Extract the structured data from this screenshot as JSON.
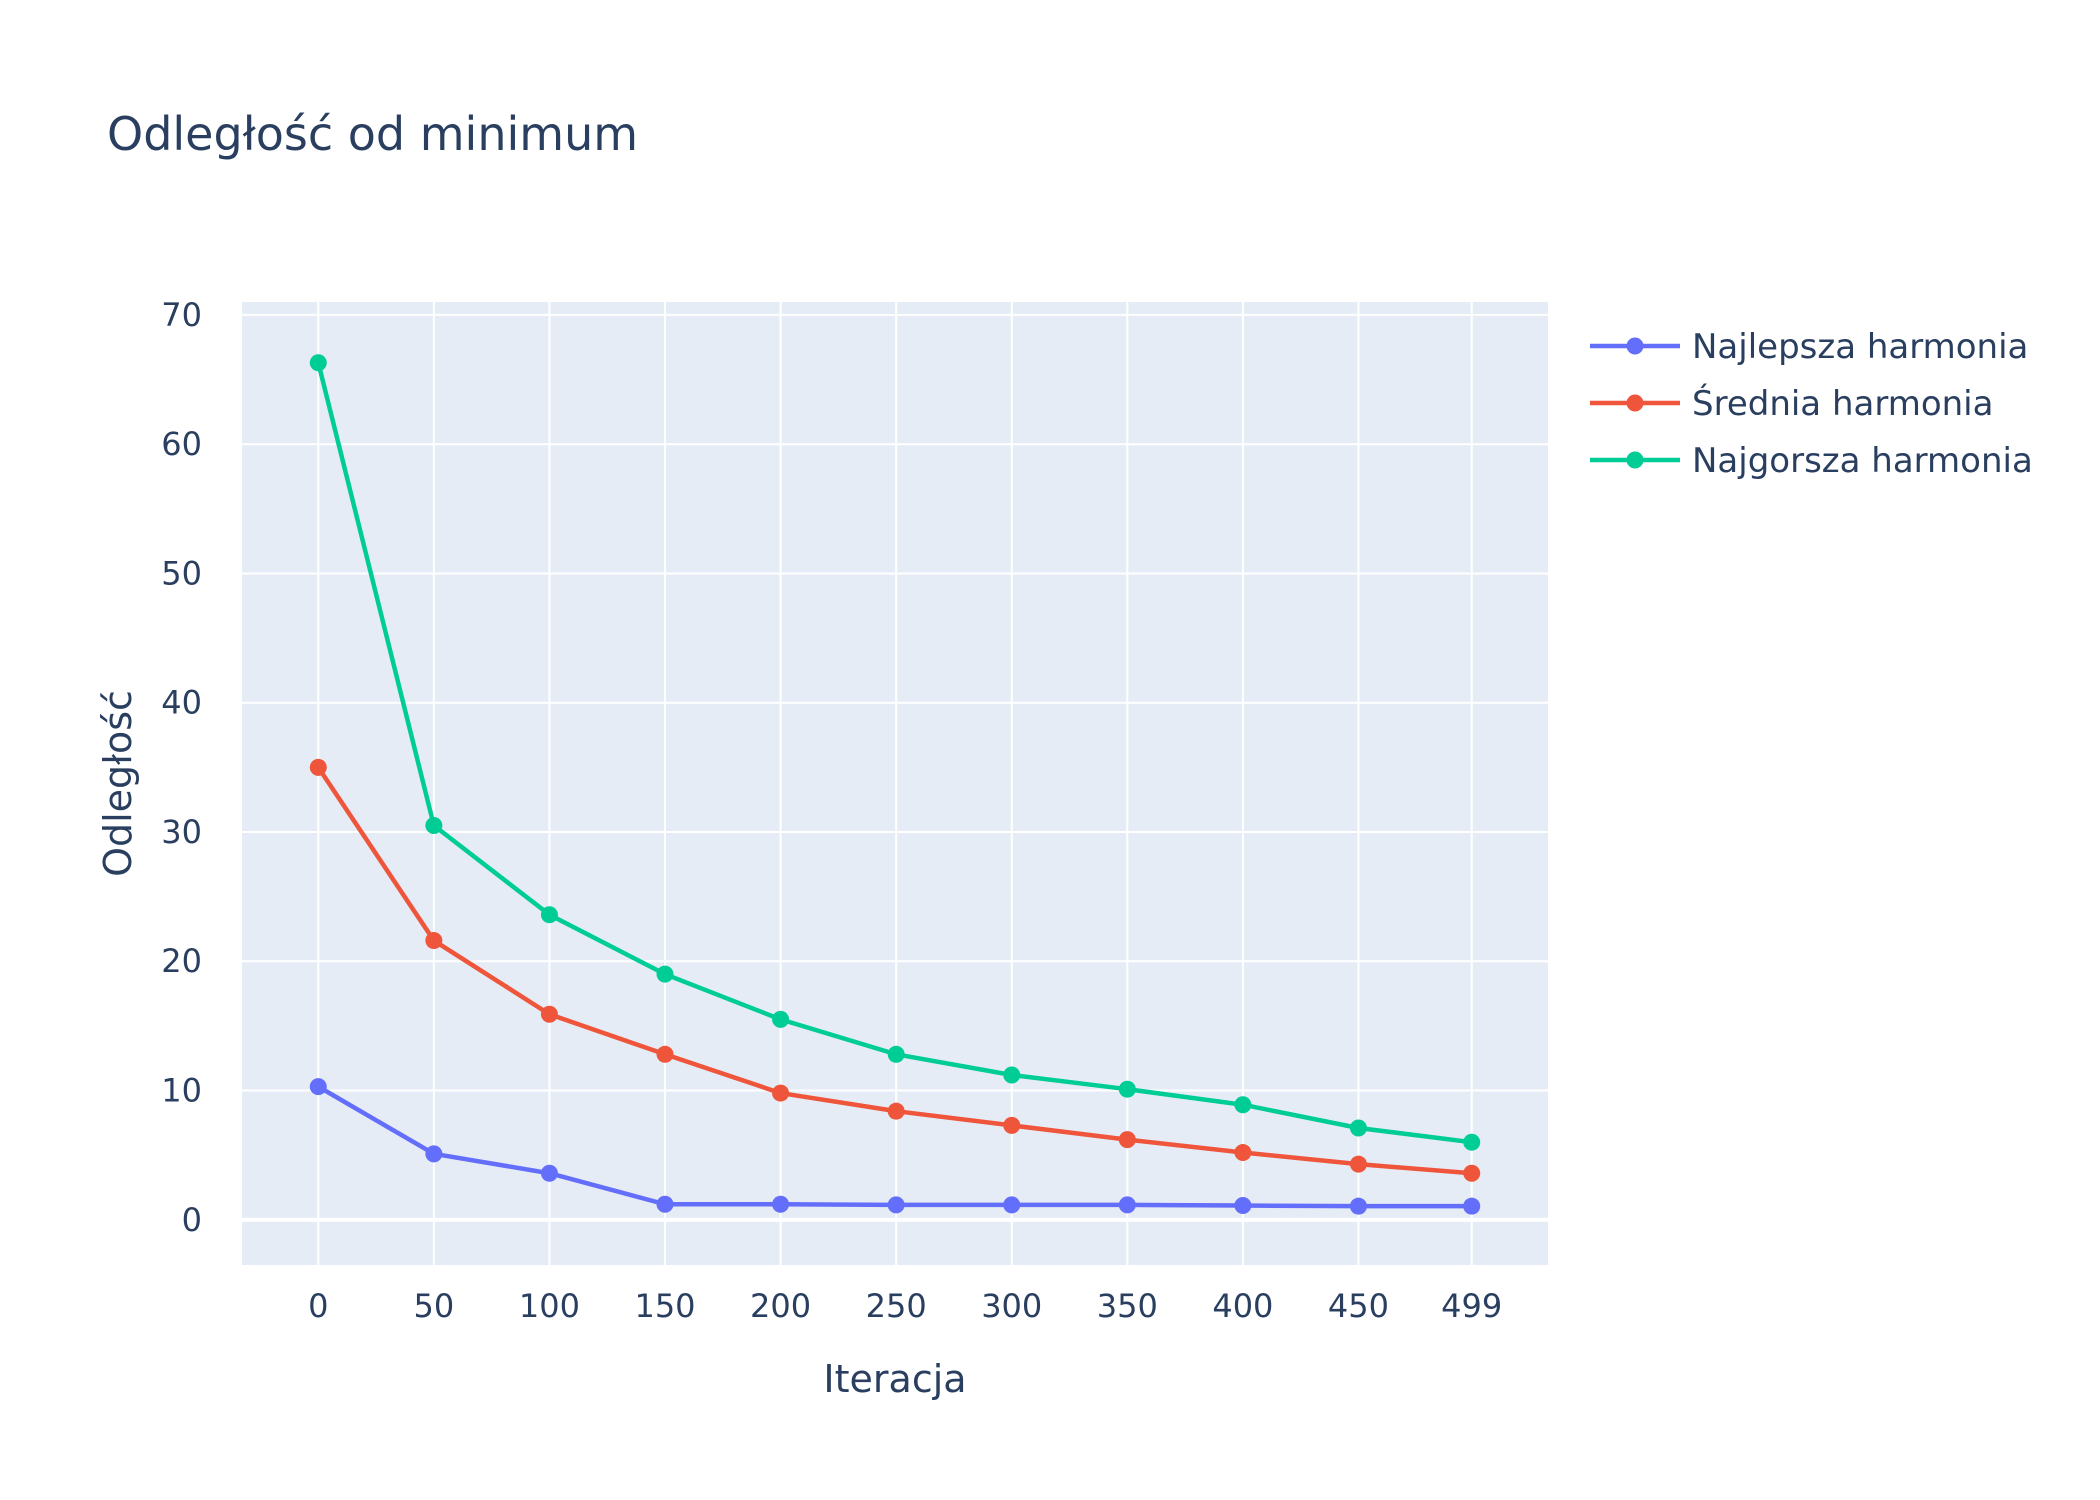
{
  "chart_data": {
    "type": "line",
    "title": "Odległość od minimum",
    "xlabel": "Iteracja",
    "ylabel": "Odległość",
    "x": [
      0,
      50,
      100,
      150,
      200,
      250,
      300,
      350,
      400,
      450,
      499
    ],
    "x_ticks": [
      "0",
      "50",
      "100",
      "150",
      "200",
      "250",
      "300",
      "350",
      "400",
      "450",
      "499"
    ],
    "y_ticks": [
      0,
      10,
      20,
      30,
      40,
      50,
      60,
      70
    ],
    "xlim": [
      -33,
      532
    ],
    "ylim": [
      -3.5,
      71
    ],
    "grid": true,
    "legend_position": "top-right",
    "series": [
      {
        "name": "Najlepsza harmonia",
        "color": "#636efa",
        "values": [
          10.3,
          5.1,
          3.6,
          1.2,
          1.2,
          1.15,
          1.15,
          1.15,
          1.1,
          1.05,
          1.05
        ]
      },
      {
        "name": "Średnia harmonia",
        "color": "#ef553b",
        "values": [
          35.0,
          21.6,
          15.9,
          12.8,
          9.8,
          8.4,
          7.3,
          6.2,
          5.2,
          4.3,
          3.6
        ]
      },
      {
        "name": "Najgorsza harmonia",
        "color": "#00cc96",
        "values": [
          66.3,
          30.5,
          23.6,
          19.0,
          15.5,
          12.8,
          11.2,
          10.1,
          8.9,
          7.1,
          6.0
        ]
      }
    ]
  }
}
